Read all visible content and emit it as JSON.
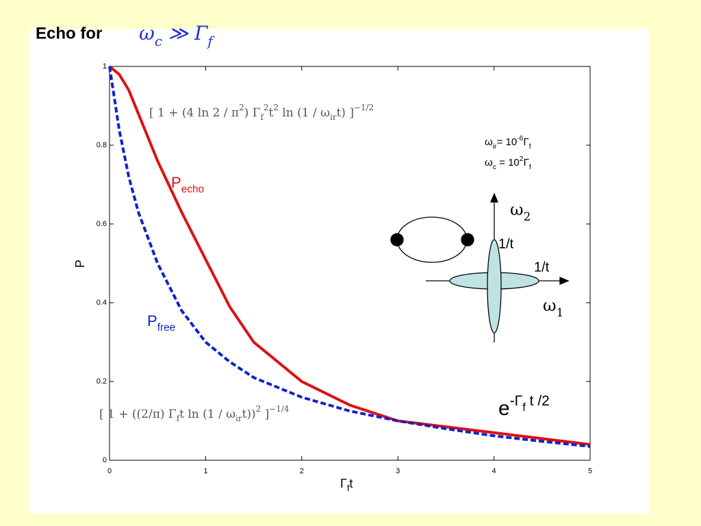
{
  "chart_data": {
    "type": "line",
    "title": "Echo for",
    "title_math": [
      {
        "t": "ω"
      },
      {
        "t": "c",
        "s": "sub"
      },
      {
        "t": " ≫ Γ"
      },
      {
        "t": "f",
        "s": "sub"
      }
    ],
    "xlabel": [
      {
        "t": "Γ"
      },
      {
        "t": "f",
        "s": "sub"
      },
      {
        "t": "t"
      }
    ],
    "ylabel": "P",
    "x": [
      0,
      0.1,
      0.2,
      0.3,
      0.5,
      0.75,
      1,
      1.25,
      1.5,
      2,
      2.5,
      3,
      3.5,
      4,
      4.5,
      5
    ],
    "series": [
      {
        "label": [
          {
            "t": "P"
          },
          {
            "t": "echo",
            "s": "sub"
          }
        ],
        "color": "#dd1111",
        "dashed": false,
        "values": [
          1,
          0.98,
          0.94,
          0.88,
          0.76,
          0.63,
          0.51,
          0.39,
          0.3,
          0.2,
          0.14,
          0.1,
          0.085,
          0.07,
          0.055,
          0.04
        ]
      },
      {
        "label": [
          {
            "t": "P"
          },
          {
            "t": "free",
            "s": "sub"
          }
        ],
        "color": "#1122cc",
        "dashed": true,
        "values": [
          1,
          0.84,
          0.72,
          0.63,
          0.5,
          0.38,
          0.3,
          0.25,
          0.21,
          0.16,
          0.125,
          0.1,
          0.08,
          0.062,
          0.048,
          0.035
        ]
      }
    ],
    "xlim": [
      0,
      5
    ],
    "xticks": [
      0,
      1,
      2,
      3,
      4,
      5
    ],
    "ylim": [
      0,
      1
    ],
    "yticks": [
      0,
      0.2,
      0.4,
      0.6,
      0.8,
      1
    ],
    "formula_echo": [
      {
        "t": "[ 1 + (4 ln 2 / π"
      },
      {
        "t": "2",
        "s": "sup"
      },
      {
        "t": ") Γ"
      },
      {
        "t": "f",
        "s": "sub"
      },
      {
        "t": "2",
        "s": "sup"
      },
      {
        "t": "t"
      },
      {
        "t": "2",
        "s": "sup"
      },
      {
        "t": " ln (1 / ω"
      },
      {
        "t": "ir",
        "s": "sub"
      },
      {
        "t": "t) ]"
      },
      {
        "t": "−1/2",
        "s": "sup"
      }
    ],
    "formula_free": [
      {
        "t": "[ 1 + ((2/π) Γ"
      },
      {
        "t": "f",
        "s": "sub"
      },
      {
        "t": "t ln (1 / ω"
      },
      {
        "t": "ir",
        "s": "sub"
      },
      {
        "t": "t))"
      },
      {
        "t": "2",
        "s": "sup"
      },
      {
        "t": " ]"
      },
      {
        "t": "−1/4",
        "s": "sup"
      }
    ],
    "param_ir": [
      {
        "t": "ω"
      },
      {
        "t": "ir",
        "s": "sub"
      },
      {
        "t": "= 10"
      },
      {
        "t": "-6",
        "s": "sup"
      },
      {
        "t": "Γ"
      },
      {
        "t": "f",
        "s": "sub"
      }
    ],
    "param_c": [
      {
        "t": "ω"
      },
      {
        "t": "c",
        "s": "sub"
      },
      {
        "t": " =  10"
      },
      {
        "t": "2",
        "s": "sup"
      },
      {
        "t": "Γ"
      },
      {
        "t": "f",
        "s": "sub"
      }
    ],
    "omega2": [
      {
        "t": "ω"
      },
      {
        "t": "2",
        "s": "sub"
      }
    ],
    "omega1": [
      {
        "t": "ω"
      },
      {
        "t": "1",
        "s": "sub"
      }
    ],
    "width_v": "1/t",
    "width_h": "1/t",
    "decay": [
      {
        "t": "e"
      },
      {
        "t": "-Γ",
        "s": "sup"
      },
      {
        "t": "f",
        "s": "supsub"
      },
      {
        "t": " t /2",
        "s": "sup"
      }
    ]
  }
}
